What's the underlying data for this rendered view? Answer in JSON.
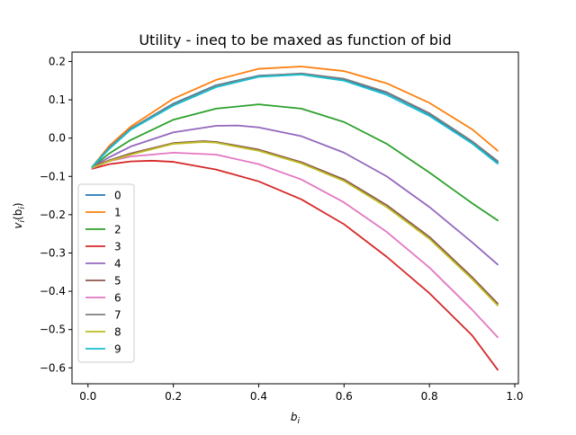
{
  "chart_data": {
    "type": "line",
    "title": "Utility - ineq to be maxed as function of bid",
    "xlabel_main": "b",
    "xlabel_sub": "i",
    "ylabel_main": "v",
    "ylabel_sub1": "i",
    "ylabel_paren_open": "(b",
    "ylabel_sub2": "i",
    "ylabel_paren_close": ")",
    "xlim": [
      -0.0375,
      1.0085
    ],
    "ylim": [
      -0.6415,
      0.2245
    ],
    "xticks": [
      0.0,
      0.2,
      0.4,
      0.6,
      0.8,
      1.0
    ],
    "xtick_labels": [
      "0.0",
      "0.2",
      "0.4",
      "0.6",
      "0.8",
      "1.0"
    ],
    "yticks": [
      -0.6,
      -0.5,
      -0.4,
      -0.3,
      -0.2,
      -0.1,
      0.0,
      0.1,
      0.2
    ],
    "ytick_labels": [
      "−0.6",
      "−0.5",
      "−0.4",
      "−0.3",
      "−0.2",
      "−0.1",
      "0.0",
      "0.1",
      "0.2"
    ],
    "grid": false,
    "legend_position": "center-left",
    "series": [
      {
        "name": "0",
        "color": "#1f77b4",
        "x": [
          0.01,
          0.05,
          0.1,
          0.2,
          0.3,
          0.4,
          0.5,
          0.6,
          0.7,
          0.8,
          0.9,
          0.96
        ],
        "y": [
          -0.075,
          -0.025,
          0.025,
          0.09,
          0.138,
          0.163,
          0.168,
          0.153,
          0.118,
          0.063,
          -0.01,
          -0.063
        ]
      },
      {
        "name": "1",
        "color": "#ff7f0e",
        "x": [
          0.01,
          0.05,
          0.1,
          0.2,
          0.3,
          0.4,
          0.5,
          0.6,
          0.7,
          0.8,
          0.9,
          0.96
        ],
        "y": [
          -0.075,
          -0.02,
          0.03,
          0.103,
          0.152,
          0.181,
          0.187,
          0.175,
          0.143,
          0.092,
          0.023,
          -0.033
        ]
      },
      {
        "name": "2",
        "color": "#2ca02c",
        "x": [
          0.01,
          0.05,
          0.1,
          0.2,
          0.3,
          0.4,
          0.5,
          0.6,
          0.7,
          0.8,
          0.9,
          0.96
        ],
        "y": [
          -0.075,
          -0.04,
          -0.005,
          0.048,
          0.077,
          0.088,
          0.077,
          0.042,
          -0.015,
          -0.09,
          -0.17,
          -0.215
        ]
      },
      {
        "name": "3",
        "color": "#d62728",
        "x": [
          0.01,
          0.05,
          0.1,
          0.15,
          0.2,
          0.3,
          0.4,
          0.5,
          0.6,
          0.7,
          0.8,
          0.9,
          0.96
        ],
        "y": [
          -0.08,
          -0.068,
          -0.061,
          -0.059,
          -0.062,
          -0.082,
          -0.113,
          -0.16,
          -0.225,
          -0.31,
          -0.405,
          -0.515,
          -0.605
        ]
      },
      {
        "name": "4",
        "color": "#9467bd",
        "x": [
          0.01,
          0.05,
          0.1,
          0.2,
          0.3,
          0.35,
          0.4,
          0.5,
          0.6,
          0.7,
          0.8,
          0.9,
          0.96
        ],
        "y": [
          -0.075,
          -0.05,
          -0.022,
          0.015,
          0.032,
          0.033,
          0.028,
          0.005,
          -0.038,
          -0.1,
          -0.18,
          -0.272,
          -0.33
        ]
      },
      {
        "name": "5",
        "color": "#8c564b",
        "x": [
          0.01,
          0.05,
          0.1,
          0.2,
          0.27,
          0.3,
          0.4,
          0.5,
          0.6,
          0.7,
          0.8,
          0.9,
          0.96
        ],
        "y": [
          -0.075,
          -0.058,
          -0.04,
          -0.013,
          -0.008,
          -0.01,
          -0.03,
          -0.063,
          -0.108,
          -0.175,
          -0.258,
          -0.363,
          -0.432
        ]
      },
      {
        "name": "6",
        "color": "#e377c2",
        "x": [
          0.01,
          0.05,
          0.1,
          0.2,
          0.3,
          0.4,
          0.5,
          0.6,
          0.7,
          0.8,
          0.9,
          0.96
        ],
        "y": [
          -0.078,
          -0.06,
          -0.048,
          -0.038,
          -0.043,
          -0.068,
          -0.108,
          -0.168,
          -0.245,
          -0.338,
          -0.448,
          -0.52
        ]
      },
      {
        "name": "7",
        "color": "#7f7f7f",
        "x": [
          0.01,
          0.05,
          0.1,
          0.2,
          0.3,
          0.4,
          0.5,
          0.6,
          0.7,
          0.8,
          0.9,
          0.96
        ],
        "y": [
          -0.075,
          -0.024,
          0.025,
          0.088,
          0.137,
          0.162,
          0.169,
          0.155,
          0.12,
          0.065,
          -0.008,
          -0.06
        ]
      },
      {
        "name": "8",
        "color": "#bcbd22",
        "x": [
          0.01,
          0.05,
          0.1,
          0.2,
          0.27,
          0.3,
          0.4,
          0.5,
          0.6,
          0.7,
          0.8,
          0.9,
          0.96
        ],
        "y": [
          -0.077,
          -0.06,
          -0.043,
          -0.015,
          -0.01,
          -0.012,
          -0.033,
          -0.066,
          -0.112,
          -0.18,
          -0.263,
          -0.368,
          -0.437
        ]
      },
      {
        "name": "9",
        "color": "#17becf",
        "x": [
          0.01,
          0.05,
          0.1,
          0.2,
          0.3,
          0.4,
          0.5,
          0.6,
          0.7,
          0.8,
          0.9,
          0.96
        ],
        "y": [
          -0.075,
          -0.028,
          0.022,
          0.085,
          0.133,
          0.16,
          0.166,
          0.15,
          0.113,
          0.058,
          -0.014,
          -0.067
        ]
      }
    ]
  }
}
